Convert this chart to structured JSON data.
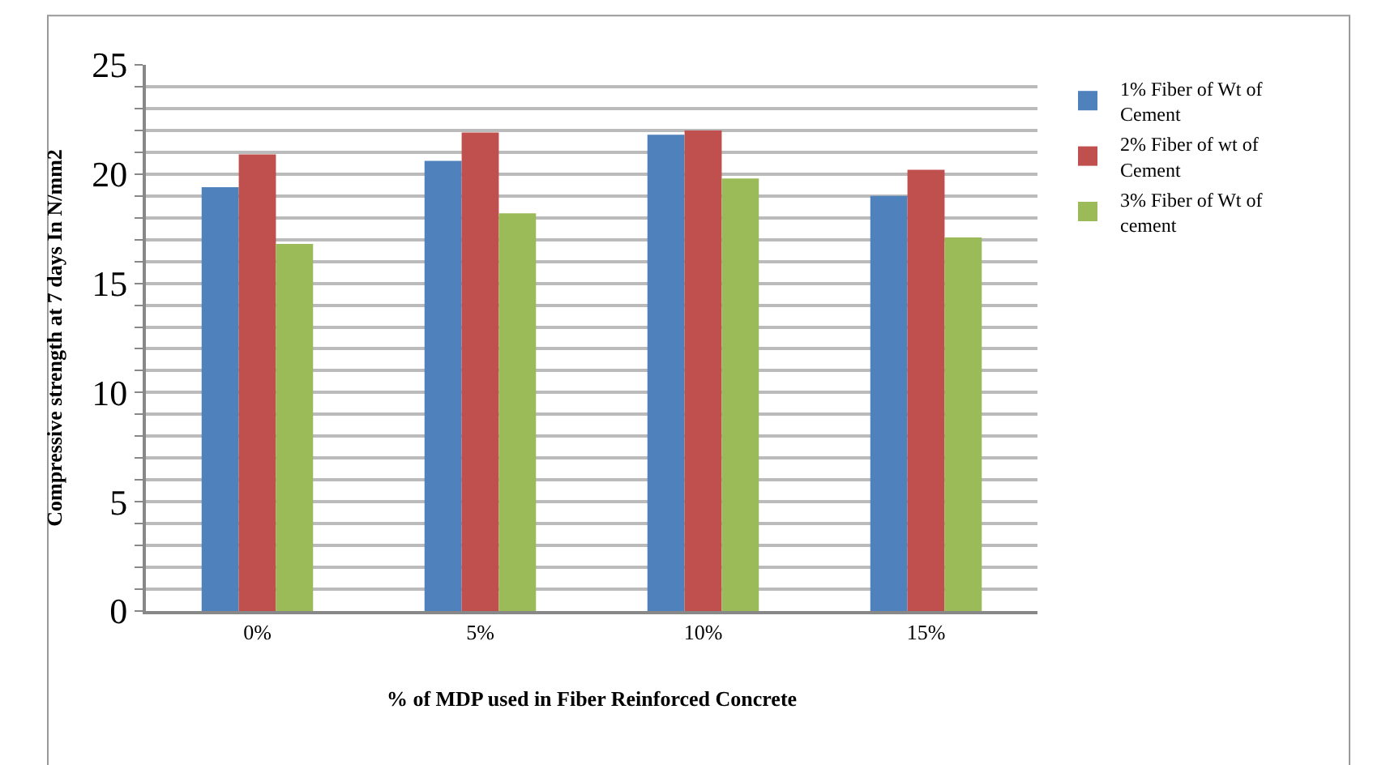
{
  "chart_data": {
    "type": "bar",
    "xlabel": "% of MDP used in Fiber Reinforced Concrete",
    "ylabel": "Compressive strength at 7 days In N/mm2",
    "categories": [
      "0%",
      "5%",
      "10%",
      "15%"
    ],
    "series": [
      {
        "name": "1% Fiber of Wt of Cement",
        "color": "#4f81bd",
        "values": [
          19.4,
          20.6,
          21.8,
          19.0
        ]
      },
      {
        "name": "2% Fiber of wt of Cement",
        "color": "#c0504d",
        "values": [
          20.9,
          21.9,
          22.0,
          20.2
        ]
      },
      {
        "name": "3% Fiber of Wt of cement",
        "color": "#9bbb59",
        "values": [
          16.8,
          18.2,
          19.8,
          17.1
        ]
      }
    ],
    "ylim": [
      0,
      25
    ],
    "yticks": [
      0,
      {
        "value": 1,
        "label": null
      },
      {
        "value": 2,
        "label": null
      },
      {
        "value": 3,
        "label": null
      },
      {
        "value": 4,
        "label": null
      },
      5,
      {
        "value": 6,
        "label": null
      },
      {
        "value": 7,
        "label": null
      },
      {
        "value": 8,
        "label": null
      },
      {
        "value": 9,
        "label": null
      },
      10,
      {
        "value": 11,
        "label": null
      },
      {
        "value": 12,
        "label": null
      },
      {
        "value": 13,
        "label": null
      },
      {
        "value": 14,
        "label": null
      },
      15,
      {
        "value": 16,
        "label": null
      },
      {
        "value": 17,
        "label": null
      },
      {
        "value": 18,
        "label": null
      },
      {
        "value": 19,
        "label": null
      },
      20,
      {
        "value": 21,
        "label": null
      },
      {
        "value": 22,
        "label": null
      },
      {
        "value": 23,
        "label": null
      },
      {
        "value": 24,
        "label": null
      },
      25
    ],
    "grid": "y",
    "legend": "right"
  }
}
